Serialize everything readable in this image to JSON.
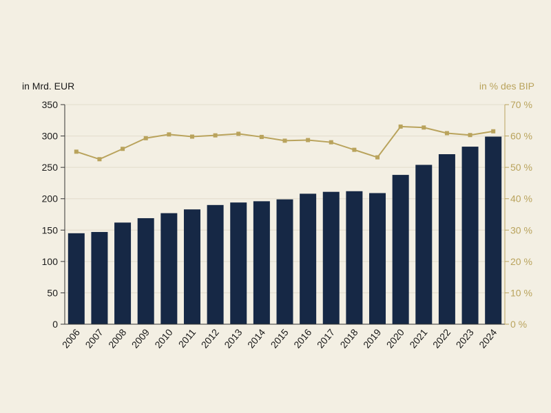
{
  "chart_data": {
    "type": "bar",
    "categories": [
      "2006",
      "2007",
      "2008",
      "2009",
      "2010",
      "2011",
      "2012",
      "2013",
      "2014",
      "2015",
      "2016",
      "2017",
      "2018",
      "2019",
      "2020",
      "2021",
      "2022",
      "2023",
      "2024"
    ],
    "series": [
      {
        "axis": "left",
        "type": "bar",
        "color": "#162845",
        "values": [
          145,
          147,
          162,
          169,
          177,
          183,
          190,
          194,
          196,
          199,
          208,
          211,
          212,
          209,
          238,
          254,
          271,
          283,
          299
        ]
      },
      {
        "axis": "right",
        "type": "line",
        "color": "#b9a35c",
        "values": [
          55.0,
          52.6,
          55.9,
          59.3,
          60.5,
          59.8,
          60.2,
          60.7,
          59.7,
          58.5,
          58.7,
          58.0,
          55.6,
          53.2,
          63.0,
          62.7,
          60.9,
          60.3,
          61.5
        ]
      }
    ],
    "ylabel_left": "in Mrd. EUR",
    "ylabel_right": "in % des BIP",
    "ylim_left": [
      0,
      350
    ],
    "ylim_right": [
      0,
      70
    ],
    "yticks_left": [
      "0",
      "50",
      "100",
      "150",
      "200",
      "250",
      "300",
      "350"
    ],
    "yticks_right": [
      "0 %",
      "10 %",
      "20 %",
      "30 %",
      "40 %",
      "50 %",
      "60 %",
      "70 %"
    ],
    "grid": true
  }
}
